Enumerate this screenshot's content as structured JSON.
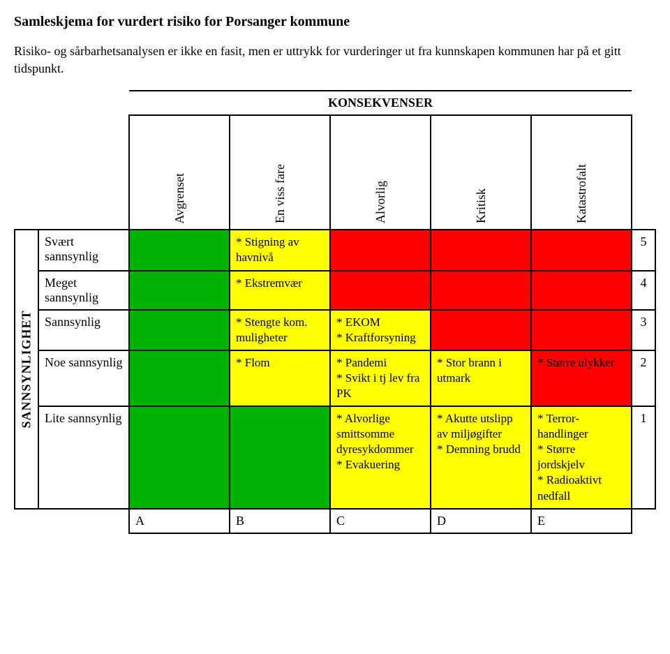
{
  "title": "Samleskjema for vurdert risiko for Porsanger kommune",
  "subtitle": "Risiko- og sårbarhetsanalysen er ikke en fasit, men er uttrykk for vurderinger ut fra kunnskapen kommunen har på et gitt tidspunkt.",
  "colors": {
    "green": "#00b400",
    "yellow": "#ffff00",
    "red": "#ff0000",
    "white": "#ffffff",
    "black": "#000000"
  },
  "axes": {
    "columns_title": "KONSEKVENSER",
    "rows_title": "SANNSYNLIGHET",
    "column_headers": [
      "Avgrenset",
      "En viss fare",
      "Alvorlig",
      "Kritisk",
      "Katastrofalt"
    ],
    "column_letters": [
      "A",
      "B",
      "C",
      "D",
      "E"
    ],
    "row_labels": [
      "Svært sannsynlig",
      "Meget sannsynlig",
      "Sannsynlig",
      "Noe sannsynlig",
      "Lite sannsynlig"
    ],
    "row_numbers": [
      "5",
      "4",
      "3",
      "2",
      "1"
    ]
  },
  "cells": {
    "r0": {
      "A": {
        "color": "#00b400",
        "text": ""
      },
      "B": {
        "color": "#ffff00",
        "text": "* Stigning av havnivå"
      },
      "C": {
        "color": "#ff0000",
        "text": ""
      },
      "D": {
        "color": "#ff0000",
        "text": ""
      },
      "E": {
        "color": "#ff0000",
        "text": ""
      }
    },
    "r1": {
      "A": {
        "color": "#00b400",
        "text": ""
      },
      "B": {
        "color": "#ffff00",
        "text": "* Ekstremvær"
      },
      "C": {
        "color": "#ff0000",
        "text": ""
      },
      "D": {
        "color": "#ff0000",
        "text": ""
      },
      "E": {
        "color": "#ff0000",
        "text": ""
      }
    },
    "r2": {
      "A": {
        "color": "#00b400",
        "text": ""
      },
      "B": {
        "color": "#ffff00",
        "text": "* Stengte kom. muligheter"
      },
      "C": {
        "color": "#ffff00",
        "text": "* EKOM\n* Kraftforsyning"
      },
      "D": {
        "color": "#ff0000",
        "text": ""
      },
      "E": {
        "color": "#ff0000",
        "text": ""
      }
    },
    "r3": {
      "A": {
        "color": "#00b400",
        "text": ""
      },
      "B": {
        "color": "#ffff00",
        "text": "* Flom"
      },
      "C": {
        "color": "#ffff00",
        "text": "* Pandemi\n* Svikt i tj lev fra PK"
      },
      "D": {
        "color": "#ffff00",
        "text": "* Stor brann i utmark"
      },
      "E": {
        "color": "#ff0000",
        "text": "* Større ulykker"
      }
    },
    "r4": {
      "A": {
        "color": "#00b400",
        "text": ""
      },
      "B": {
        "color": "#00b400",
        "text": ""
      },
      "C": {
        "color": "#ffff00",
        "text": "* Alvorlige smittsomme dyresykdommer\n* Evakuering"
      },
      "D": {
        "color": "#ffff00",
        "text": "* Akutte utslipp av miljøgifter\n* Demning brudd"
      },
      "E": {
        "color": "#ffff00",
        "text": "* Terror-handlinger\n* Større jordskjelv\n* Radioaktivt nedfall"
      }
    }
  }
}
